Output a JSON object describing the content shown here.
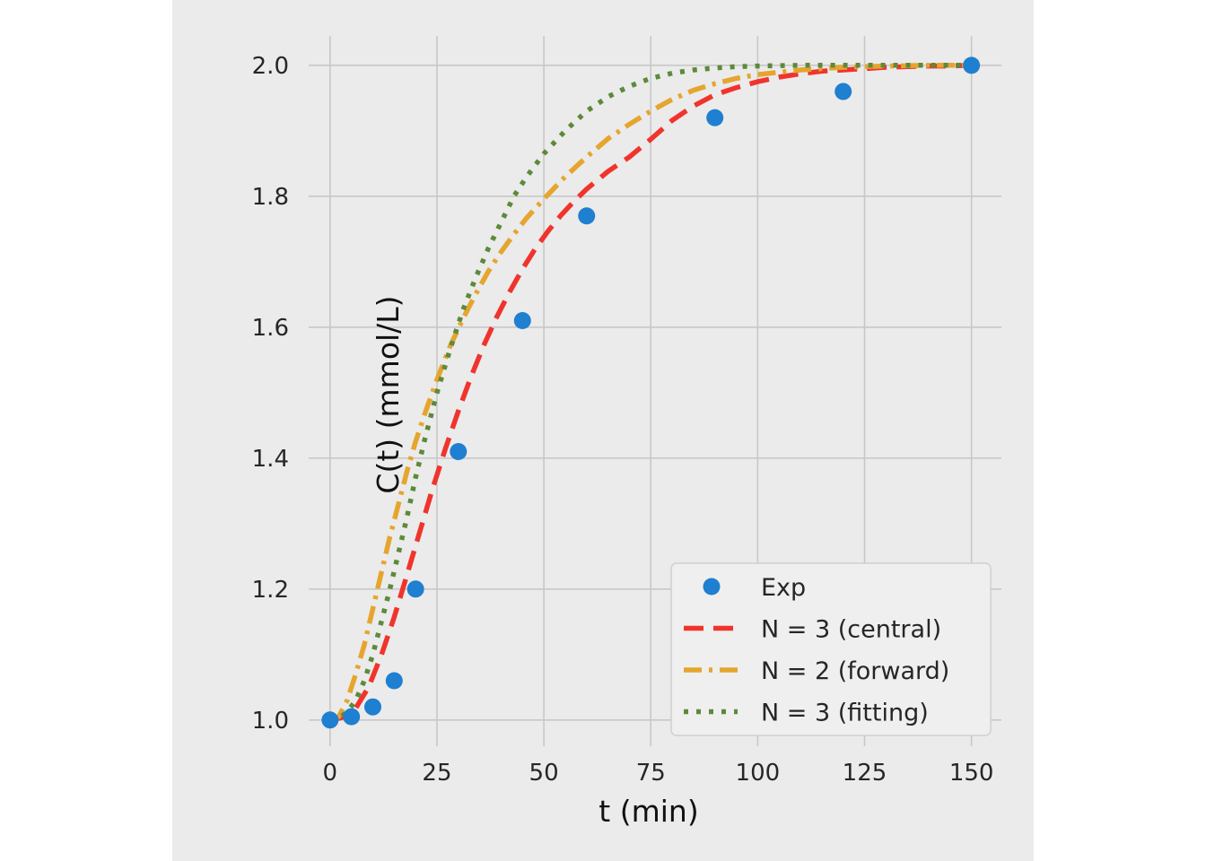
{
  "chart_data": {
    "type": "line",
    "xlabel": "t (min)",
    "ylabel": "C(t) (mmol/L)",
    "xlim": [
      -5,
      157
    ],
    "ylim": [
      0.96,
      2.045
    ],
    "xticks": [
      "0",
      "25",
      "50",
      "75",
      "100",
      "125",
      "150"
    ],
    "yticks": [
      "1.0",
      "1.2",
      "1.4",
      "1.6",
      "1.8",
      "2.0"
    ],
    "xtick_values": [
      0,
      25,
      50,
      75,
      100,
      125,
      150
    ],
    "ytick_values": [
      1.0,
      1.2,
      1.4,
      1.6,
      1.8,
      2.0
    ],
    "grid": true,
    "legend_position": "lower-right",
    "series": [
      {
        "name": "Exp",
        "kind": "scatter",
        "color": "#1f7fd0",
        "x": [
          0,
          5,
          10,
          15,
          20,
          30,
          45,
          60,
          90,
          120,
          150
        ],
        "y": [
          1.0,
          1.005,
          1.02,
          1.06,
          1.2,
          1.41,
          1.61,
          1.77,
          1.92,
          1.96,
          2.0
        ]
      },
      {
        "name": "N = 3 (central)",
        "kind": "line",
        "style": "dashed",
        "color": "#f0342c",
        "x": [
          0,
          3,
          6,
          9,
          12,
          15,
          18,
          21,
          24,
          27,
          30,
          33,
          36,
          39,
          42,
          45,
          48,
          51,
          54,
          57,
          60,
          65,
          70,
          75,
          80,
          85,
          90,
          95,
          100,
          105,
          110,
          115,
          120,
          125,
          130,
          135,
          140,
          145,
          150
        ],
        "y": [
          1.0,
          1.004,
          1.018,
          1.05,
          1.099,
          1.157,
          1.222,
          1.288,
          1.354,
          1.415,
          1.472,
          1.525,
          1.573,
          1.616,
          1.654,
          1.689,
          1.72,
          1.747,
          1.771,
          1.792,
          1.811,
          1.838,
          1.86,
          1.887,
          1.916,
          1.938,
          1.955,
          1.966,
          1.975,
          1.982,
          1.987,
          1.991,
          1.993,
          1.995,
          1.997,
          1.998,
          1.999,
          1.999,
          2.0
        ]
      },
      {
        "name": "N = 2 (forward)",
        "kind": "line",
        "style": "dash-dot",
        "color": "#e5a52e",
        "x": [
          0,
          2,
          4,
          6,
          8,
          10,
          12,
          14,
          16,
          18,
          20,
          22,
          25,
          28,
          31,
          34,
          37,
          40,
          43,
          46,
          50,
          55,
          60,
          65,
          70,
          75,
          80,
          85,
          90,
          95,
          100,
          110,
          120,
          130,
          140,
          150
        ],
        "y": [
          1.0,
          1.005,
          1.03,
          1.07,
          1.115,
          1.17,
          1.225,
          1.28,
          1.33,
          1.38,
          1.425,
          1.465,
          1.52,
          1.57,
          1.612,
          1.65,
          1.685,
          1.715,
          1.742,
          1.767,
          1.796,
          1.83,
          1.86,
          1.888,
          1.91,
          1.93,
          1.948,
          1.962,
          1.972,
          1.98,
          1.986,
          1.993,
          1.997,
          1.999,
          2.0,
          2.0
        ]
      },
      {
        "name": "N = 3 (fitting)",
        "kind": "line",
        "style": "dotted",
        "color": "#5d8a3a",
        "x": [
          0,
          2,
          4,
          6,
          8,
          10,
          12,
          14,
          16,
          18,
          20,
          22,
          25,
          28,
          31,
          34,
          37,
          40,
          43,
          46,
          50,
          55,
          60,
          65,
          70,
          75,
          80,
          85,
          90,
          95,
          100,
          110,
          120,
          130,
          140,
          150
        ],
        "y": [
          1.0,
          1.003,
          1.012,
          1.03,
          1.06,
          1.1,
          1.15,
          1.2,
          1.255,
          1.31,
          1.37,
          1.425,
          1.5,
          1.565,
          1.625,
          1.675,
          1.72,
          1.76,
          1.8,
          1.83,
          1.865,
          1.9,
          1.93,
          1.952,
          1.968,
          1.98,
          1.988,
          1.993,
          1.996,
          1.998,
          1.999,
          2.0,
          2.0,
          2.0,
          2.0,
          2.0
        ]
      }
    ]
  }
}
